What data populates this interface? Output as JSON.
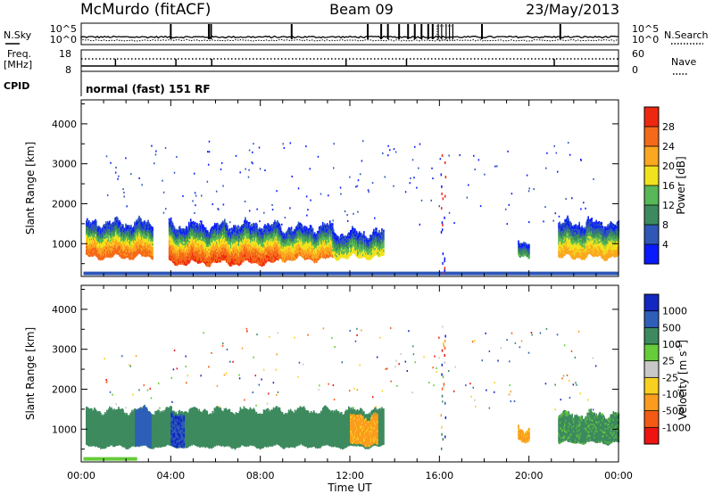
{
  "header": {
    "station": "McMurdo (fitACF)",
    "beam": "Beam 09",
    "date": "23/May/2013"
  },
  "noise_panel": {
    "left_label": "N.Sky",
    "right_label": "N.Search",
    "left_ticks": [
      "10^5",
      "10^0"
    ],
    "right_ticks": [
      "10^5",
      "10^0"
    ]
  },
  "freq_panel": {
    "left_label_line1": "Freq.",
    "left_label_line2": "[MHz]",
    "right_label": "Nave",
    "left_ticks": [
      "18",
      "8"
    ],
    "right_ticks": [
      "60",
      "0"
    ]
  },
  "cpid": {
    "label": "CPID",
    "text": "normal (fast) 151 RF"
  },
  "colors": {
    "power_scale": [
      "#0a1aff",
      "#2e57b8",
      "#3d8a5e",
      "#58b857",
      "#f2e21e",
      "#fba820",
      "#f56a1a",
      "#ee2810"
    ],
    "velocity_scale": [
      "#ee1410",
      "#f55a15",
      "#fb9c1e",
      "#f8d020",
      "#c8c8c8",
      "#66cc3a",
      "#3d8a5e",
      "#2e5fb8",
      "#1228c0"
    ],
    "ground_scatter": "#b8b8b8"
  },
  "chart_data": [
    {
      "type": "heatmap",
      "panel": "power",
      "ylabel": "Slant Range [km]",
      "ylim": [
        180,
        4600
      ],
      "yticks": [
        "1000",
        "2000",
        "3000",
        "4000"
      ],
      "xlim": [
        0,
        24
      ],
      "xticks": [
        "00:00",
        "04:00",
        "08:00",
        "12:00",
        "16:00",
        "20:00",
        "00:00"
      ],
      "colorbar_label": "Power [dB]",
      "colorbar_ticks": [
        "4",
        "8",
        "12",
        "16",
        "20",
        "24",
        "28"
      ],
      "colorbar_range": [
        0,
        32
      ],
      "echo_regions": [
        {
          "t0": 0.2,
          "t1": 3.2,
          "r_low": 650,
          "r_high": 1500,
          "peak_db": 28
        },
        {
          "t0": 3.9,
          "t1": 8.8,
          "r_low": 500,
          "r_high": 1450,
          "peak_db": 30
        },
        {
          "t0": 8.8,
          "t1": 11.2,
          "r_low": 600,
          "r_high": 1400,
          "peak_db": 26
        },
        {
          "t0": 11.2,
          "t1": 13.5,
          "r_low": 650,
          "r_high": 1250,
          "peak_db": 20
        },
        {
          "t0": 19.5,
          "t1": 20.0,
          "r_low": 700,
          "r_high": 1050,
          "peak_db": 14
        },
        {
          "t0": 21.3,
          "t1": 24.0,
          "r_low": 650,
          "r_high": 1500,
          "peak_db": 24
        }
      ]
    },
    {
      "type": "heatmap",
      "panel": "velocity",
      "ylabel": "Slant Range [km]",
      "ylim": [
        180,
        4600
      ],
      "yticks": [
        "1000",
        "2000",
        "3000",
        "4000"
      ],
      "xlim": [
        0,
        24
      ],
      "xlabel": "Time UT",
      "xticks": [
        "00:00",
        "04:00",
        "08:00",
        "12:00",
        "16:00",
        "20:00",
        "00:00"
      ],
      "colorbar_label": "Velocity [m s^-1]",
      "colorbar_ticks": [
        "-1000",
        "-500",
        "-100",
        "-25",
        "25",
        "100",
        "500",
        "1000"
      ],
      "echo_regions": [
        {
          "t0": 0.2,
          "t1": 13.5,
          "r_low": 550,
          "r_high": 1450,
          "velocity": 300
        },
        {
          "t0": 2.4,
          "t1": 3.1,
          "r_low": 550,
          "r_high": 1450,
          "velocity": 800
        },
        {
          "t0": 4.0,
          "t1": 4.6,
          "r_low": 550,
          "r_high": 1350,
          "velocity": 1000
        },
        {
          "t0": 12.0,
          "t1": 13.2,
          "r_low": 600,
          "r_high": 1300,
          "velocity": -150
        },
        {
          "t0": 19.5,
          "t1": 20.0,
          "r_low": 700,
          "r_high": 1000,
          "velocity": -150
        },
        {
          "t0": 21.3,
          "t1": 24.0,
          "r_low": 650,
          "r_high": 1350,
          "velocity": 150
        }
      ]
    }
  ]
}
